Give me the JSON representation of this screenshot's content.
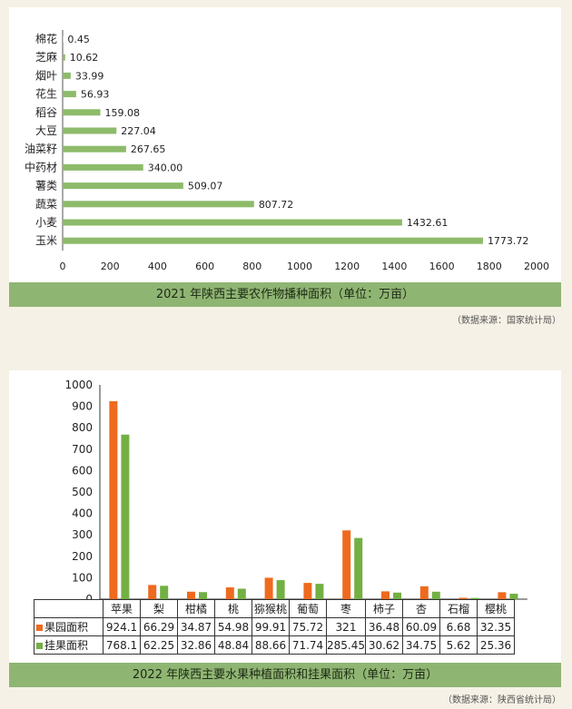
{
  "chart_data": [
    {
      "type": "bar",
      "orientation": "horizontal",
      "title": "2021 年陕西主要农作物播种面积（单位：万亩）",
      "categories": [
        "棉花",
        "芝麻",
        "烟叶",
        "花生",
        "稻谷",
        "大豆",
        "油菜籽",
        "中药材",
        "薯类",
        "蔬菜",
        "小麦",
        "玉米"
      ],
      "values": [
        0.45,
        10.62,
        33.99,
        56.93,
        159.08,
        227.04,
        267.65,
        340.0,
        509.07,
        807.72,
        1432.61,
        1773.72
      ],
      "value_labels": [
        "0.45",
        "10.62",
        "33.99",
        "56.93",
        "159.08",
        "227.04",
        "267.65",
        "340.00",
        "509.07",
        "807.72",
        "1432.61",
        "1773.72"
      ],
      "xlim": [
        0,
        2000
      ],
      "xticks": [
        "0",
        "200",
        "400",
        "600",
        "800",
        "1000",
        "1200",
        "1400",
        "1600",
        "1800",
        "2000"
      ],
      "bar_color": "#8dbb6a",
      "grid": false
    },
    {
      "type": "bar",
      "title": "2022 年陕西主要水果种植面积和挂果面积（单位：万亩）",
      "categories": [
        "苹果",
        "梨",
        "柑橘",
        "桃",
        "猕猴桃",
        "葡萄",
        "枣",
        "柿子",
        "杏",
        "石榴",
        "樱桃"
      ],
      "series": [
        {
          "name": "果园面积",
          "color": "#ee6a1e",
          "values": [
            924.1,
            66.29,
            34.87,
            54.98,
            99.91,
            75.72,
            321,
            36.48,
            60.09,
            6.68,
            32.35
          ],
          "labels": [
            "924.1",
            "66.29",
            "34.87",
            "54.98",
            "99.91",
            "75.72",
            "321",
            "36.48",
            "60.09",
            "6.68",
            "32.35"
          ]
        },
        {
          "name": "挂果面积",
          "color": "#72b043",
          "values": [
            768.1,
            62.25,
            32.86,
            48.84,
            88.66,
            71.74,
            285.45,
            30.62,
            34.75,
            5.62,
            25.36
          ],
          "labels": [
            "768.1",
            "62.25",
            "32.86",
            "48.84",
            "88.66",
            "71.74",
            "285.45",
            "30.62",
            "34.75",
            "5.62",
            "25.36"
          ]
        }
      ],
      "ylim": [
        0,
        1000
      ],
      "yticks": [
        "0",
        "100",
        "200",
        "300",
        "400",
        "500",
        "600",
        "700",
        "800",
        "900",
        "1000"
      ],
      "grid": false
    }
  ],
  "source1": "（数据来源：国家统计局）",
  "source2": "（数据来源：陕西省统计局）"
}
